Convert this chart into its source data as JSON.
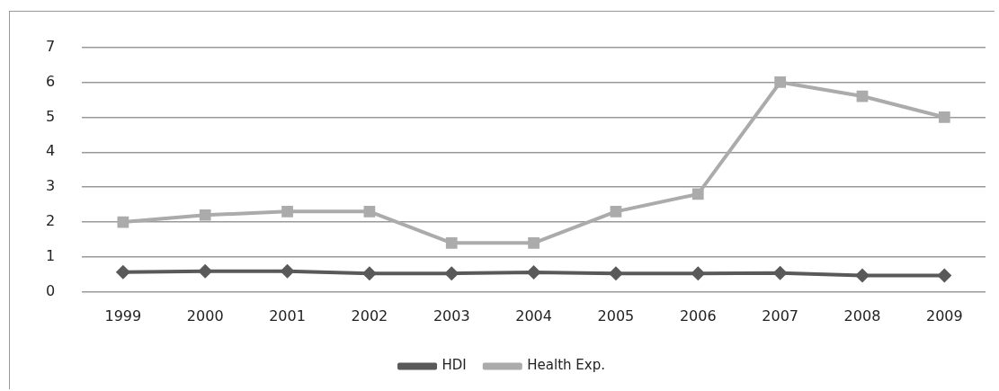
{
  "chart_data": {
    "type": "line",
    "categories": [
      "1999",
      "2000",
      "2001",
      "2002",
      "2003",
      "2004",
      "2005",
      "2006",
      "2007",
      "2008",
      "2009"
    ],
    "series": [
      {
        "name": "HDI",
        "color": "#595959",
        "marker": "diamond",
        "values": [
          0.57,
          0.59,
          0.59,
          0.53,
          0.53,
          0.56,
          0.53,
          0.53,
          0.54,
          0.47,
          0.47
        ]
      },
      {
        "name": "Health Exp.",
        "color": "#ababab",
        "marker": "square",
        "values": [
          2.0,
          2.2,
          2.3,
          2.3,
          1.4,
          1.4,
          2.3,
          2.8,
          6.0,
          5.6,
          5.0
        ]
      }
    ],
    "ylim": [
      0,
      7
    ],
    "yticks": [
      0,
      1,
      2,
      3,
      4,
      5,
      6,
      7
    ],
    "grid": "y",
    "legend": "bottom",
    "line_style": "solid"
  }
}
